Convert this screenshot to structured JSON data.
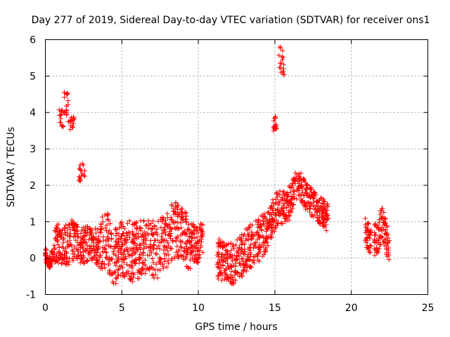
{
  "chart_data": {
    "type": "scatter",
    "title": "Day 277 of 2019, Sidereal Day-to-day VTEC variation (SDTVAR) for receiver ons1",
    "xlabel": "GPS time / hours",
    "ylabel": "SDTVAR / TECUs",
    "xlim": [
      0,
      25
    ],
    "ylim": [
      -1,
      6
    ],
    "xticks": [
      "0",
      "5",
      "10",
      "15",
      "20",
      "25"
    ],
    "yticks": [
      "-1",
      "0",
      "1",
      "2",
      "3",
      "4",
      "5",
      "6"
    ],
    "grid": true,
    "marker": "+",
    "color": "#ff0000",
    "series": [
      {
        "name": "SDTVAR",
        "segments": [
          {
            "x0": 0.0,
            "x1": 0.6,
            "center": [
              [
                0.0,
                0.1
              ],
              [
                0.3,
                -0.1
              ],
              [
                0.6,
                0.2
              ]
            ],
            "spread": 0.4
          },
          {
            "x0": 0.6,
            "x1": 2.2,
            "center": [
              [
                0.6,
                0.4
              ],
              [
                1.2,
                0.3
              ],
              [
                1.8,
                0.5
              ],
              [
                2.2,
                0.4
              ]
            ],
            "spread": 1.2
          },
          {
            "x0": 2.2,
            "x1": 3.5,
            "center": [
              [
                2.2,
                0.3
              ],
              [
                2.8,
                0.4
              ],
              [
                3.5,
                0.3
              ]
            ],
            "spread": 1.0
          },
          {
            "x0": 3.5,
            "x1": 5.5,
            "center": [
              [
                3.5,
                0.2
              ],
              [
                4.0,
                0.5
              ],
              [
                4.5,
                0.0
              ],
              [
                5.0,
                0.2
              ],
              [
                5.5,
                0.3
              ]
            ],
            "spread": 1.6
          },
          {
            "x0": 5.5,
            "x1": 7.5,
            "center": [
              [
                5.5,
                0.1
              ],
              [
                6.5,
                0.3
              ],
              [
                7.5,
                0.2
              ]
            ],
            "spread": 1.6
          },
          {
            "x0": 7.5,
            "x1": 9.5,
            "center": [
              [
                7.5,
                0.3
              ],
              [
                8.5,
                0.8
              ],
              [
                9.5,
                0.4
              ]
            ],
            "spread": 1.6
          },
          {
            "x0": 9.5,
            "x1": 10.3,
            "center": [
              [
                9.5,
                0.5
              ],
              [
                10.0,
                0.3
              ],
              [
                10.3,
                0.6
              ]
            ],
            "spread": 1.0
          },
          {
            "x0": 11.2,
            "x1": 13.0,
            "center": [
              [
                11.2,
                0.0
              ],
              [
                12.0,
                -0.2
              ],
              [
                13.0,
                0.1
              ]
            ],
            "spread": 1.2
          },
          {
            "x0": 13.0,
            "x1": 14.5,
            "center": [
              [
                13.0,
                0.2
              ],
              [
                14.0,
                0.5
              ],
              [
                14.5,
                0.8
              ]
            ],
            "spread": 1.2
          },
          {
            "x0": 14.5,
            "x1": 16.0,
            "center": [
              [
                14.5,
                0.8
              ],
              [
                15.2,
                1.4
              ],
              [
                16.0,
                1.5
              ]
            ],
            "spread": 1.0
          },
          {
            "x0": 16.0,
            "x1": 18.5,
            "center": [
              [
                16.0,
                1.6
              ],
              [
                16.5,
                2.1
              ],
              [
                17.2,
                1.6
              ],
              [
                18.5,
                1.1
              ]
            ],
            "spread": 0.8
          },
          {
            "x0": 20.9,
            "x1": 21.3,
            "center": [
              [
                20.9,
                0.7
              ],
              [
                21.3,
                0.5
              ]
            ],
            "spread": 0.8
          },
          {
            "x0": 21.5,
            "x1": 22.5,
            "center": [
              [
                21.5,
                0.4
              ],
              [
                22.0,
                0.9
              ],
              [
                22.5,
                0.3
              ]
            ],
            "spread": 1.0
          }
        ],
        "clusters": [
          {
            "x": [
              0.9,
              1.2
            ],
            "y": [
              3.6,
              4.1
            ]
          },
          {
            "x": [
              1.2,
              1.5
            ],
            "y": [
              3.9,
              4.6
            ]
          },
          {
            "x": [
              1.5,
              1.9
            ],
            "y": [
              3.5,
              3.9
            ]
          },
          {
            "x": [
              2.2,
              2.6
            ],
            "y": [
              2.1,
              2.6
            ]
          },
          {
            "x": [
              14.9,
              15.1
            ],
            "y": [
              3.5,
              3.9
            ]
          },
          {
            "x": [
              15.2,
              15.6
            ],
            "y": [
              5.0,
              5.8
            ]
          }
        ]
      }
    ]
  }
}
